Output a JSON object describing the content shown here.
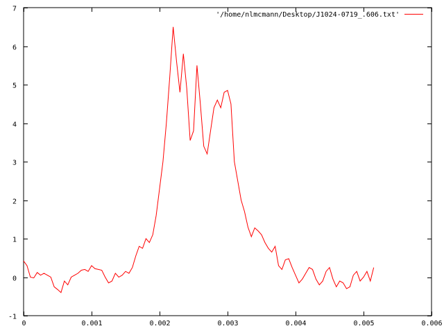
{
  "chart_data": {
    "type": "line",
    "title": "",
    "xlabel": "",
    "ylabel": "",
    "xlim": [
      0,
      0.006
    ],
    "ylim": [
      -1,
      7
    ],
    "x_ticks": [
      0,
      0.001,
      0.002,
      0.003,
      0.004,
      0.005,
      0.006
    ],
    "x_tick_labels": [
      "0",
      "0.001",
      "0.002",
      "0.003",
      "0.004",
      "0.005",
      "0.006"
    ],
    "y_ticks": [
      -1,
      0,
      1,
      2,
      3,
      4,
      5,
      6,
      7
    ],
    "y_tick_labels": [
      "-1",
      "0",
      "1",
      "2",
      "3",
      "4",
      "5",
      "6",
      "7"
    ],
    "grid": false,
    "legend_position": "top-right",
    "series": [
      {
        "name": "'/home/nlmcmann/Desktop/J1024-0719_.606.txt'",
        "color": "#ff0000",
        "x": [
          0,
          5e-05,
          0.0001,
          0.00015,
          0.0002,
          0.00025,
          0.0003,
          0.00035,
          0.0004,
          0.00045,
          0.0005,
          0.00055,
          0.0006,
          0.00065,
          0.0007,
          0.00075,
          0.0008,
          0.00085,
          0.0009,
          0.00095,
          0.001,
          0.00105,
          0.0011,
          0.00115,
          0.0012,
          0.00125,
          0.0013,
          0.00135,
          0.0014,
          0.00145,
          0.0015,
          0.00155,
          0.0016,
          0.00165,
          0.0017,
          0.00175,
          0.0018,
          0.00185,
          0.0019,
          0.00195,
          0.002,
          0.00205,
          0.0021,
          0.00215,
          0.0022,
          0.00225,
          0.0023,
          0.00235,
          0.0024,
          0.00245,
          0.0025,
          0.00255,
          0.0026,
          0.00265,
          0.0027,
          0.00275,
          0.0028,
          0.00285,
          0.0029,
          0.00295,
          0.003,
          0.00305,
          0.0031,
          0.00315,
          0.0032,
          0.00325,
          0.0033,
          0.00335,
          0.0034,
          0.00345,
          0.0035,
          0.00355,
          0.0036,
          0.00365,
          0.0037,
          0.00375,
          0.0038,
          0.00385,
          0.0039,
          0.00395,
          0.004,
          0.00405,
          0.0041,
          0.00415,
          0.0042,
          0.00425,
          0.0043,
          0.00435,
          0.0044,
          0.00445,
          0.0045,
          0.00455,
          0.0046,
          0.00465,
          0.0047,
          0.00475,
          0.0048,
          0.00485,
          0.0049,
          0.00495,
          0.005,
          0.00505,
          0.0051,
          0.00515
        ],
        "y": [
          0.42,
          0.3,
          0.0,
          -0.02,
          0.12,
          0.05,
          0.1,
          0.05,
          0.0,
          -0.25,
          -0.32,
          -0.4,
          -0.1,
          -0.2,
          0.0,
          0.05,
          0.1,
          0.18,
          0.2,
          0.15,
          0.3,
          0.22,
          0.2,
          0.18,
          0.0,
          -0.15,
          -0.1,
          0.1,
          0.0,
          0.05,
          0.15,
          0.1,
          0.25,
          0.55,
          0.8,
          0.75,
          1.0,
          0.9,
          1.1,
          1.6,
          2.3,
          3.0,
          4.0,
          5.2,
          6.5,
          5.6,
          4.8,
          5.8,
          4.9,
          3.55,
          3.8,
          5.5,
          4.5,
          3.4,
          3.2,
          3.8,
          4.4,
          4.6,
          4.4,
          4.8,
          4.85,
          4.5,
          3.0,
          2.5,
          2.0,
          1.7,
          1.3,
          1.05,
          1.28,
          1.2,
          1.1,
          0.9,
          0.75,
          0.65,
          0.8,
          0.3,
          0.2,
          0.45,
          0.48,
          0.25,
          0.05,
          -0.15,
          -0.05,
          0.1,
          0.25,
          0.2,
          -0.05,
          -0.2,
          -0.1,
          0.15,
          0.25,
          -0.05,
          -0.25,
          -0.1,
          -0.15,
          -0.3,
          -0.25,
          0.05,
          0.15,
          -0.1,
          0.0,
          0.15,
          -0.1,
          0.25
        ]
      }
    ]
  }
}
